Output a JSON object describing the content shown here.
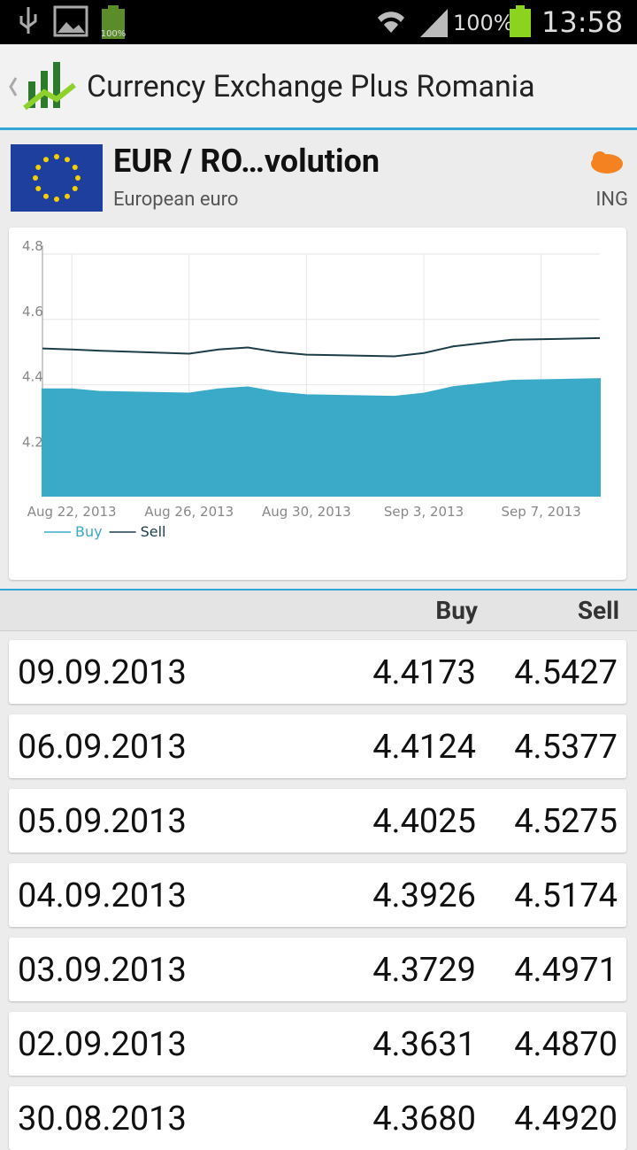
{
  "status_bar": {
    "battery_icon_label": "100%",
    "battery": "100%",
    "time": "13:58"
  },
  "app_bar": {
    "title": "Currency Exchange Plus Romania"
  },
  "header": {
    "title": "EUR / RO…volution",
    "subtitle": "European euro",
    "bank": "ING"
  },
  "chart_data": {
    "type": "line",
    "x": [
      "2013-08-21",
      "2013-08-22",
      "2013-08-23",
      "2013-08-26",
      "2013-08-27",
      "2013-08-28",
      "2013-08-29",
      "2013-08-30",
      "2013-09-02",
      "2013-09-03",
      "2013-09-04",
      "2013-09-05",
      "2013-09-06",
      "2013-09-09"
    ],
    "series": [
      {
        "name": "Buy",
        "color": "#3aaac8",
        "style": "area",
        "values": [
          4.386,
          4.386,
          4.378,
          4.373,
          4.386,
          4.392,
          4.376,
          4.368,
          4.3631,
          4.3729,
          4.3926,
          4.4025,
          4.4124,
          4.4173
        ]
      },
      {
        "name": "Sell",
        "color": "#1d3d48",
        "style": "line",
        "values": [
          4.511,
          4.508,
          4.504,
          4.495,
          4.508,
          4.514,
          4.5,
          4.492,
          4.487,
          4.4971,
          4.5174,
          4.5275,
          4.5377,
          4.5427
        ]
      }
    ],
    "xlim": [
      "2013-08-21",
      "2013-09-09"
    ],
    "xticks": [
      {
        "value": "2013-08-22",
        "label": "Aug 22, 2013"
      },
      {
        "value": "2013-08-26",
        "label": "Aug 26, 2013"
      },
      {
        "value": "2013-08-30",
        "label": "Aug 30, 2013"
      },
      {
        "value": "2013-09-03",
        "label": "Sep 3, 2013"
      },
      {
        "value": "2013-09-07",
        "label": "Sep 7, 2013"
      }
    ],
    "ylim": [
      4.06,
      4.8
    ],
    "yticks": [
      4.2,
      4.4,
      4.6,
      4.8
    ],
    "grid": true,
    "legend": "bottom-left"
  },
  "table": {
    "columns": [
      "Buy",
      "Sell"
    ],
    "rows": [
      [
        "09.09.2013",
        "4.4173",
        "4.5427"
      ],
      [
        "06.09.2013",
        "4.4124",
        "4.5377"
      ],
      [
        "05.09.2013",
        "4.4025",
        "4.5275"
      ],
      [
        "04.09.2013",
        "4.3926",
        "4.5174"
      ],
      [
        "03.09.2013",
        "4.3729",
        "4.4971"
      ],
      [
        "02.09.2013",
        "4.3631",
        "4.4870"
      ],
      [
        "30.08.2013",
        "4.3680",
        "4.4920"
      ]
    ]
  }
}
